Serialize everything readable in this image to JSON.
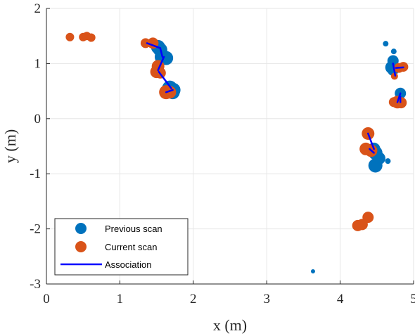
{
  "chart_data": {
    "type": "scatter",
    "xlabel": "x (m)",
    "ylabel": "y (m)",
    "xlim": [
      0,
      5
    ],
    "ylim": [
      -3,
      2
    ],
    "xticks": [
      "0",
      "1",
      "2",
      "3",
      "4",
      "5"
    ],
    "yticks": [
      "2",
      "1",
      "0",
      "-1",
      "-2",
      "-3"
    ],
    "grid": true,
    "legend_position": "bottom-left",
    "series": [
      {
        "name": "Previous scan",
        "color": "#0072BD",
        "kind": "marker",
        "points": [
          {
            "x": 1.52,
            "y": 1.3,
            "s": 10
          },
          {
            "x": 1.55,
            "y": 1.25,
            "s": 10
          },
          {
            "x": 1.58,
            "y": 1.12,
            "s": 11
          },
          {
            "x": 1.63,
            "y": 1.1,
            "s": 10
          },
          {
            "x": 1.68,
            "y": 0.55,
            "s": 11
          },
          {
            "x": 1.73,
            "y": 0.52,
            "s": 10
          },
          {
            "x": 1.72,
            "y": 0.48,
            "s": 10
          },
          {
            "x": 4.62,
            "y": 1.36,
            "s": 4
          },
          {
            "x": 4.73,
            "y": 1.22,
            "s": 4
          },
          {
            "x": 4.72,
            "y": 1.05,
            "s": 8
          },
          {
            "x": 4.7,
            "y": 0.93,
            "s": 9
          },
          {
            "x": 4.72,
            "y": 0.88,
            "s": 8
          },
          {
            "x": 4.82,
            "y": 0.46,
            "s": 8
          },
          {
            "x": 4.8,
            "y": 0.36,
            "s": 6
          },
          {
            "x": 4.46,
            "y": -0.55,
            "s": 9
          },
          {
            "x": 4.48,
            "y": -0.62,
            "s": 10
          },
          {
            "x": 4.53,
            "y": -0.72,
            "s": 9
          },
          {
            "x": 4.48,
            "y": -0.85,
            "s": 10
          },
          {
            "x": 4.65,
            "y": -0.77,
            "s": 4
          },
          {
            "x": 3.63,
            "y": -2.77,
            "s": 3
          }
        ]
      },
      {
        "name": "Current scan",
        "color": "#D95319",
        "kind": "marker",
        "points": [
          {
            "x": 0.32,
            "y": 1.48,
            "s": 6
          },
          {
            "x": 0.5,
            "y": 1.48,
            "s": 6
          },
          {
            "x": 0.55,
            "y": 1.5,
            "s": 6
          },
          {
            "x": 0.61,
            "y": 1.47,
            "s": 6
          },
          {
            "x": 1.35,
            "y": 1.37,
            "s": 7
          },
          {
            "x": 1.45,
            "y": 1.37,
            "s": 8
          },
          {
            "x": 1.52,
            "y": 0.95,
            "s": 9
          },
          {
            "x": 1.5,
            "y": 0.85,
            "s": 9
          },
          {
            "x": 1.55,
            "y": 0.83,
            "s": 8
          },
          {
            "x": 1.63,
            "y": 0.48,
            "s": 10
          },
          {
            "x": 1.68,
            "y": 0.48,
            "s": 9
          },
          {
            "x": 4.8,
            "y": 0.92,
            "s": 7
          },
          {
            "x": 4.86,
            "y": 0.94,
            "s": 7
          },
          {
            "x": 4.74,
            "y": 0.77,
            "s": 5
          },
          {
            "x": 4.78,
            "y": 0.3,
            "s": 9
          },
          {
            "x": 4.83,
            "y": 0.29,
            "s": 8
          },
          {
            "x": 4.73,
            "y": 0.3,
            "s": 7
          },
          {
            "x": 4.38,
            "y": -0.27,
            "s": 9
          },
          {
            "x": 4.35,
            "y": -0.55,
            "s": 9
          },
          {
            "x": 4.42,
            "y": -0.58,
            "s": 9
          },
          {
            "x": 4.38,
            "y": -1.79,
            "s": 8
          },
          {
            "x": 4.24,
            "y": -1.94,
            "s": 8
          },
          {
            "x": 4.3,
            "y": -1.92,
            "s": 8
          }
        ]
      },
      {
        "name": "Association",
        "color": "#0000FF",
        "kind": "segments",
        "segments": [
          {
            "x1": 1.37,
            "y1": 1.37,
            "x2": 1.55,
            "y2": 1.28
          },
          {
            "x1": 1.55,
            "y1": 1.28,
            "x2": 1.58,
            "y2": 1.12
          },
          {
            "x1": 1.52,
            "y1": 0.88,
            "x2": 1.6,
            "y2": 1.12
          },
          {
            "x1": 1.53,
            "y1": 0.85,
            "x2": 1.7,
            "y2": 0.55
          },
          {
            "x1": 1.63,
            "y1": 0.48,
            "x2": 1.72,
            "y2": 0.52
          },
          {
            "x1": 4.76,
            "y1": 0.92,
            "x2": 4.86,
            "y2": 0.93
          },
          {
            "x1": 4.72,
            "y1": 1.0,
            "x2": 4.75,
            "y2": 0.78
          },
          {
            "x1": 4.78,
            "y1": 0.3,
            "x2": 4.82,
            "y2": 0.46
          },
          {
            "x1": 4.82,
            "y1": 0.3,
            "x2": 4.82,
            "y2": 0.4
          },
          {
            "x1": 4.38,
            "y1": -0.27,
            "x2": 4.46,
            "y2": -0.55
          },
          {
            "x1": 4.4,
            "y1": -0.55,
            "x2": 4.46,
            "y2": -0.62
          }
        ]
      }
    ]
  }
}
